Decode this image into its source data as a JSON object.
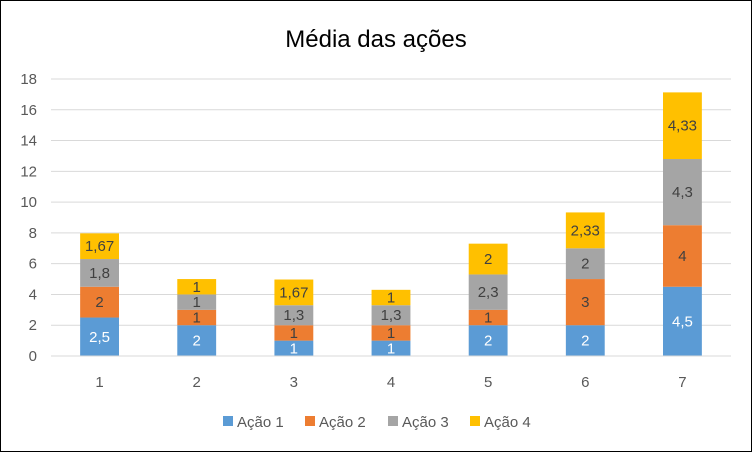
{
  "chart_data": {
    "type": "bar",
    "stacked": true,
    "title": "Média das ações",
    "categories": [
      "1",
      "2",
      "3",
      "4",
      "5",
      "6",
      "7"
    ],
    "y_ticks": [
      "0",
      "2",
      "4",
      "6",
      "8",
      "10",
      "12",
      "14",
      "16",
      "18"
    ],
    "ylim": [
      0,
      18
    ],
    "grid": true,
    "legend_position": "bottom",
    "series": [
      {
        "name": "Ação 1",
        "color": "#5B9BD5",
        "values": [
          2.5,
          2,
          1,
          1,
          2,
          2,
          4.5
        ],
        "labels": [
          "2,5",
          "2",
          "1",
          "1",
          "2",
          "2",
          "4,5"
        ]
      },
      {
        "name": "Ação 2",
        "color": "#ED7D31",
        "values": [
          2,
          1,
          1,
          1,
          1,
          3,
          4
        ],
        "labels": [
          "2",
          "1",
          "1",
          "1",
          "1",
          "3",
          "4"
        ]
      },
      {
        "name": "Ação 3",
        "color": "#A5A5A5",
        "values": [
          1.8,
          1,
          1.3,
          1.3,
          2.3,
          2,
          4.3
        ],
        "labels": [
          "1,8",
          "1",
          "1,3",
          "1,3",
          "2,3",
          "2",
          "4,3"
        ]
      },
      {
        "name": "Ação 4",
        "color": "#FFC000",
        "values": [
          1.67,
          1,
          1.67,
          1,
          2,
          2.33,
          4.33
        ],
        "labels": [
          "1,67",
          "1",
          "1,67",
          "1",
          "2",
          "2,33",
          "4,33"
        ]
      }
    ]
  }
}
